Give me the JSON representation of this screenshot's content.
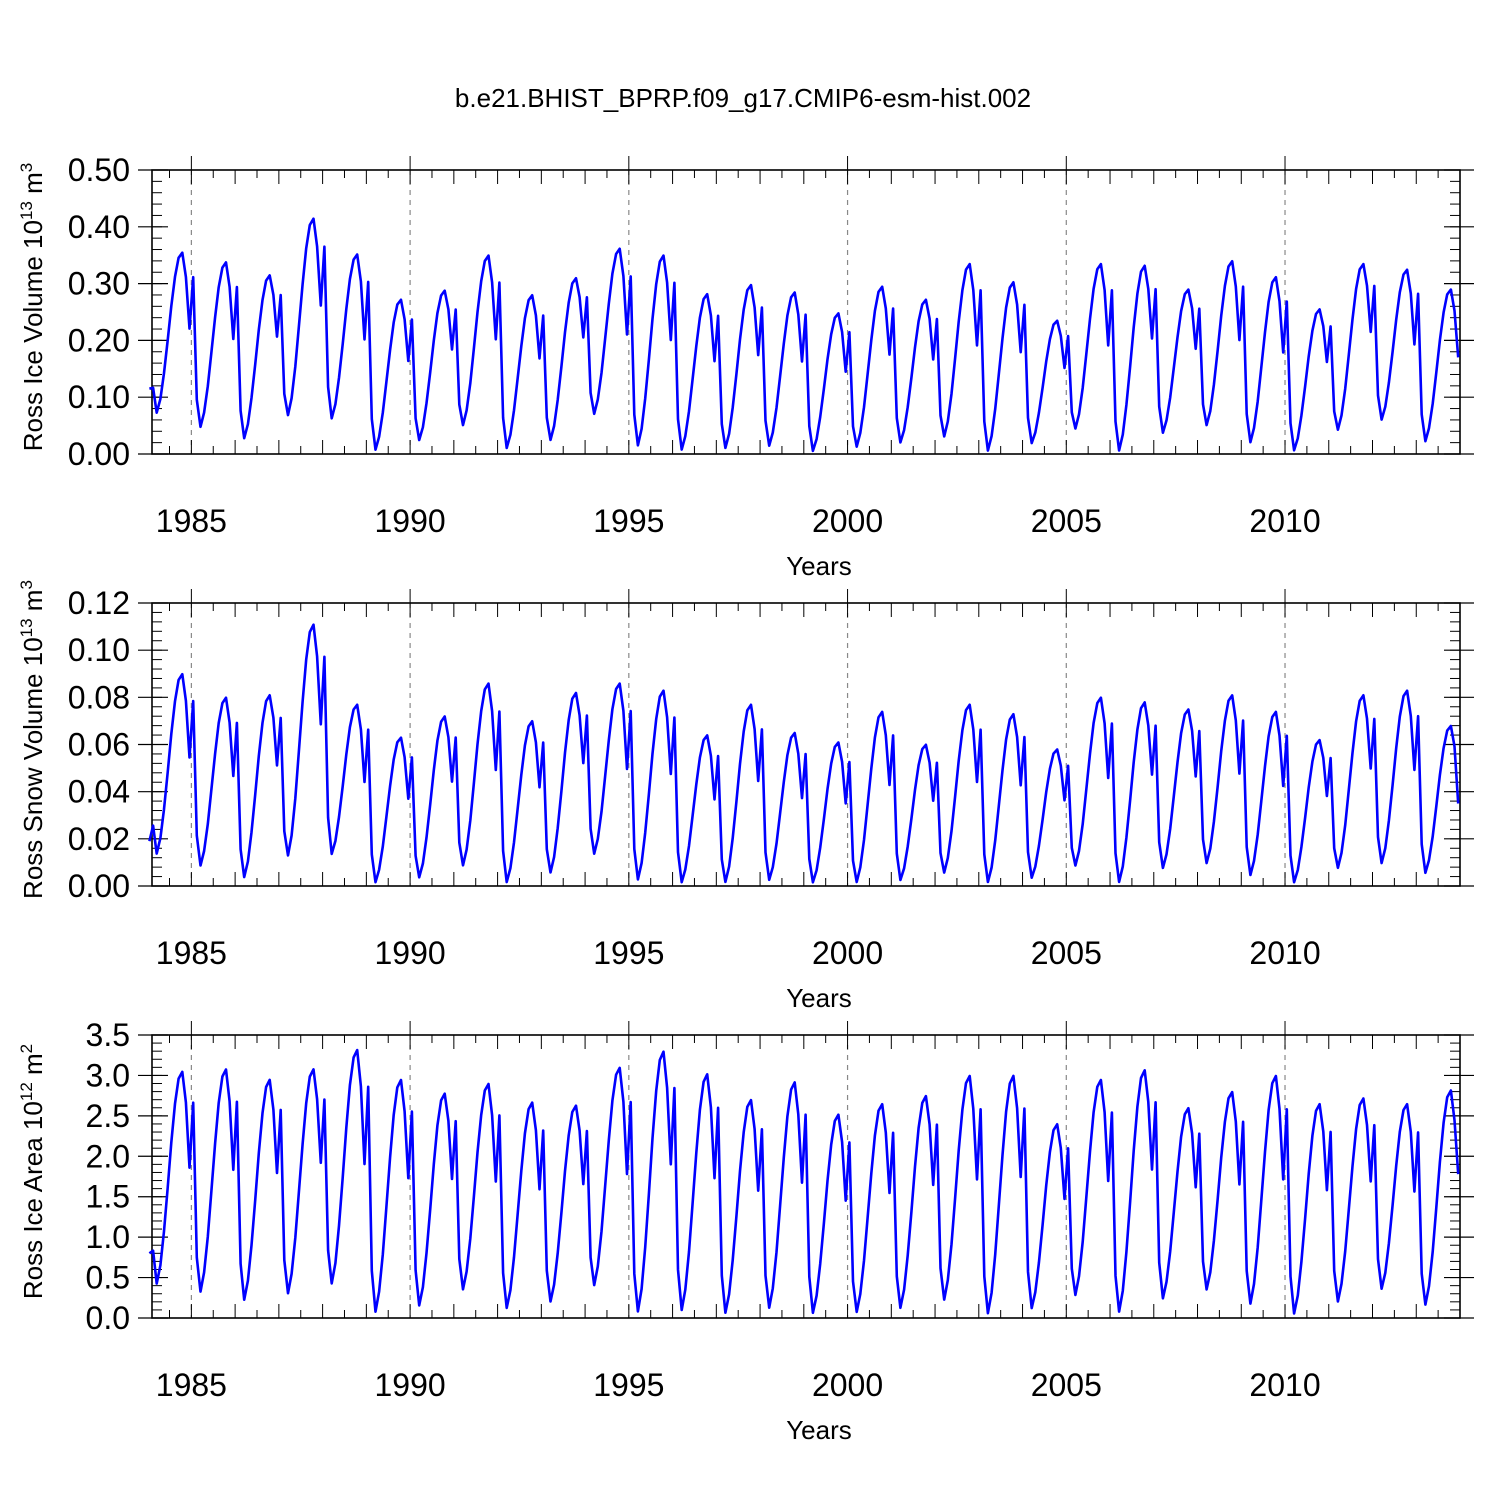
{
  "figure_title": "b.e21.BHIST_BPRP.f09_g17.CMIP6-esm-hist.002",
  "colors": {
    "series": "#0000ff",
    "axes": "#000000",
    "ref_lines": "#888888"
  },
  "chart_data": [
    {
      "type": "line",
      "title": "",
      "xlabel": "Years",
      "ylabel_main": "Ross Ice Volume 10",
      "ylabel_sup": "13",
      "ylabel_unit": " m",
      "ylabel_unit_sup": "3",
      "xlim": [
        1984.1,
        2014.0
      ],
      "ylim": [
        0.0,
        0.5
      ],
      "yticks": [
        0.0,
        0.1,
        0.2,
        0.3,
        0.4,
        0.5
      ],
      "ytick_labels": [
        "0.00",
        "0.10",
        "0.20",
        "0.30",
        "0.40",
        "0.50"
      ],
      "xticks": [
        1985,
        1990,
        1995,
        2000,
        2005,
        2010
      ],
      "xtick_labels": [
        "1985",
        "1990",
        "1995",
        "2000",
        "2005",
        "2010"
      ],
      "ref_lines_x": [
        1985,
        1990,
        1995,
        2000,
        2005,
        2010
      ],
      "grid": false,
      "series": [
        {
          "seasonal_mins": [
            0.07,
            0.045,
            0.025,
            0.065,
            0.06,
            0.005,
            0.022,
            0.048,
            0.008,
            0.022,
            0.068,
            0.012,
            0.005,
            0.008,
            0.012,
            0.003,
            0.01,
            0.018,
            0.028,
            0.003,
            0.017,
            0.042,
            0.003,
            0.035,
            0.048,
            0.018,
            0.004,
            0.04,
            0.058,
            0.02
          ],
          "seasonal_maxs": [
            0.355,
            0.338,
            0.315,
            0.415,
            0.352,
            0.272,
            0.288,
            0.35,
            0.28,
            0.31,
            0.362,
            0.35,
            0.282,
            0.298,
            0.285,
            0.248,
            0.295,
            0.272,
            0.335,
            0.303,
            0.235,
            0.335,
            0.332,
            0.29,
            0.34,
            0.312,
            0.255,
            0.335,
            0.325,
            0.29
          ],
          "start_value": 0.115,
          "end_value": 0.17
        }
      ]
    },
    {
      "type": "line",
      "title": "",
      "xlabel": "Years",
      "ylabel_main": "Ross Snow Volume 10",
      "ylabel_sup": "13",
      "ylabel_unit": " m",
      "ylabel_unit_sup": "3",
      "xlim": [
        1984.1,
        2014.0
      ],
      "ylim": [
        0.0,
        0.12
      ],
      "yticks": [
        0.0,
        0.02,
        0.04,
        0.06,
        0.08,
        0.1,
        0.12
      ],
      "ytick_labels": [
        "0.00",
        "0.02",
        "0.04",
        "0.06",
        "0.08",
        "0.10",
        "0.12"
      ],
      "xticks": [
        1985,
        1990,
        1995,
        2000,
        2005,
        2010
      ],
      "xtick_labels": [
        "1985",
        "1990",
        "1995",
        "2000",
        "2005",
        "2010"
      ],
      "ref_lines_x": [
        1985,
        1990,
        1995,
        2000,
        2005,
        2010
      ],
      "grid": false,
      "series": [
        {
          "seasonal_mins": [
            0.013,
            0.008,
            0.003,
            0.012,
            0.013,
            0.001,
            0.003,
            0.008,
            0.001,
            0.005,
            0.013,
            0.002,
            0.001,
            0.001,
            0.002,
            0.001,
            0.001,
            0.002,
            0.005,
            0.001,
            0.003,
            0.008,
            0.001,
            0.007,
            0.009,
            0.004,
            0.001,
            0.007,
            0.009,
            0.005
          ],
          "seasonal_maxs": [
            0.09,
            0.08,
            0.081,
            0.111,
            0.077,
            0.063,
            0.072,
            0.086,
            0.07,
            0.082,
            0.086,
            0.083,
            0.064,
            0.077,
            0.065,
            0.061,
            0.074,
            0.06,
            0.077,
            0.073,
            0.058,
            0.08,
            0.078,
            0.075,
            0.081,
            0.074,
            0.062,
            0.081,
            0.083,
            0.068
          ],
          "start_value": 0.019,
          "end_value": 0.035
        }
      ]
    },
    {
      "type": "line",
      "title": "",
      "xlabel": "Years",
      "ylabel_main": "Ross Ice Area 10",
      "ylabel_sup": "12",
      "ylabel_unit": " m",
      "ylabel_unit_sup": "2",
      "xlim": [
        1984.1,
        2014.0
      ],
      "ylim": [
        0.0,
        3.5
      ],
      "yticks": [
        0.0,
        0.5,
        1.0,
        1.5,
        2.0,
        2.5,
        3.0,
        3.5
      ],
      "ytick_labels": [
        "0.0",
        "0.5",
        "1.0",
        "1.5",
        "2.0",
        "2.5",
        "3.0",
        "3.5"
      ],
      "xticks": [
        1985,
        1990,
        1995,
        2000,
        2005,
        2010
      ],
      "xtick_labels": [
        "1985",
        "1990",
        "1995",
        "2000",
        "2005",
        "2010"
      ],
      "ref_lines_x": [
        1985,
        1990,
        1995,
        2000,
        2005,
        2010
      ],
      "grid": false,
      "series": [
        {
          "seasonal_mins": [
            0.4,
            0.3,
            0.2,
            0.28,
            0.4,
            0.05,
            0.13,
            0.33,
            0.1,
            0.18,
            0.38,
            0.05,
            0.07,
            0.04,
            0.1,
            0.04,
            0.05,
            0.1,
            0.2,
            0.03,
            0.1,
            0.26,
            0.05,
            0.22,
            0.33,
            0.15,
            0.03,
            0.18,
            0.34,
            0.14
          ],
          "seasonal_maxs": [
            3.05,
            3.08,
            2.95,
            3.08,
            3.32,
            2.95,
            2.78,
            2.9,
            2.67,
            2.63,
            3.1,
            3.3,
            3.02,
            2.7,
            2.92,
            2.52,
            2.65,
            2.75,
            3.0,
            3.0,
            2.4,
            2.95,
            3.07,
            2.6,
            2.8,
            3.0,
            2.65,
            2.72,
            2.65,
            2.82
          ],
          "start_value": 0.8,
          "end_value": 1.78
        }
      ]
    }
  ]
}
